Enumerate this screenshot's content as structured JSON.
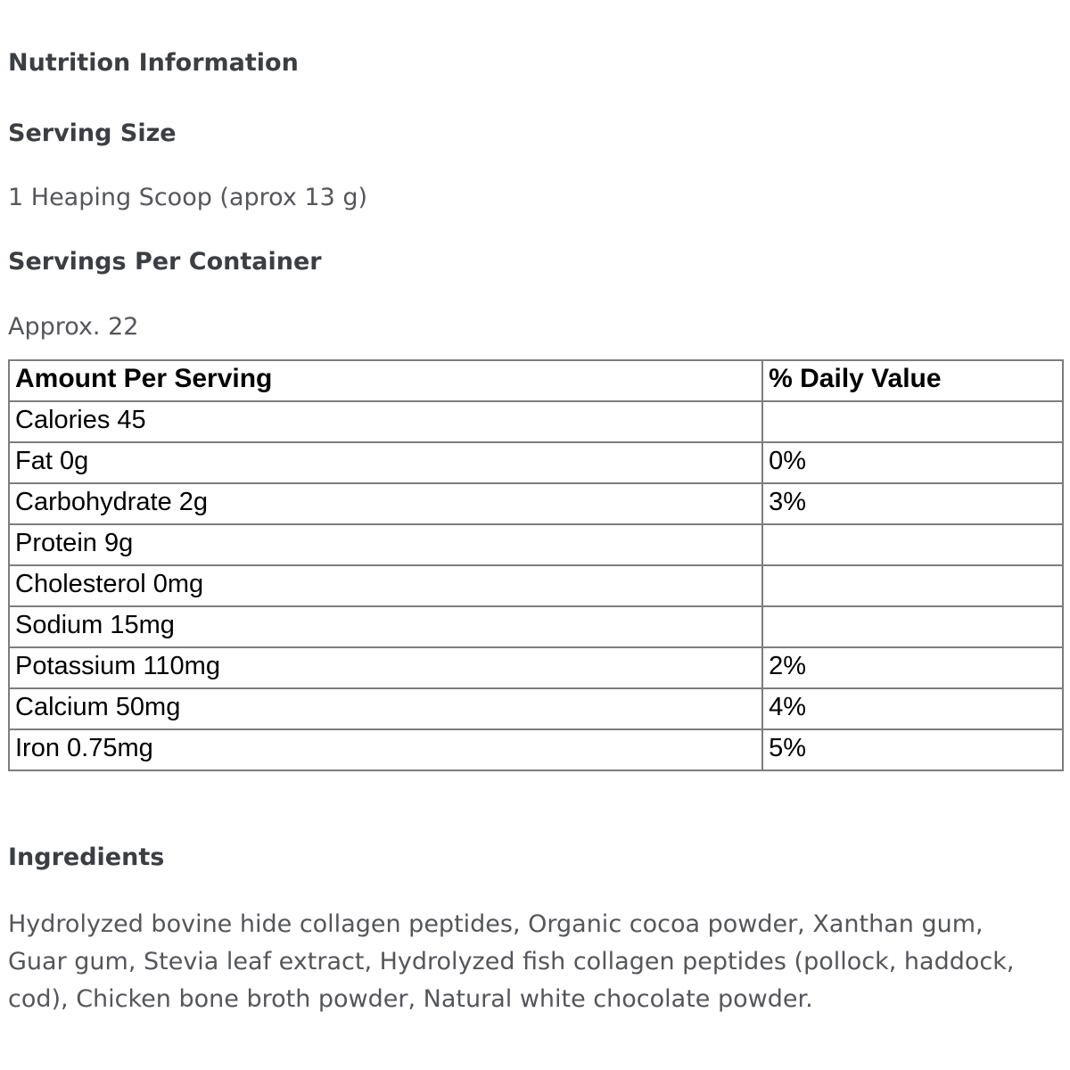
{
  "page": {
    "nutrition_heading": "Nutrition Information",
    "serving_size_heading": "Serving Size",
    "serving_size_value": "1 Heaping Scoop (aprox 13 g)",
    "servings_per_container_heading": "Servings Per Container",
    "servings_per_container_value": "Approx. 22",
    "ingredients_heading": "Ingredients",
    "ingredients_text": "Hydrolyzed bovine hide collagen peptides, Organic cocoa powder, Xanthan gum, Guar gum, Stevia leaf extract, Hydrolyzed fish collagen peptides (pollock, haddock, cod), Chicken bone broth powder, Natural white chocolate powder."
  },
  "table": {
    "columns": [
      "Amount Per Serving",
      "% Daily Value"
    ],
    "rows": [
      {
        "amount": "Calories 45",
        "daily_value": ""
      },
      {
        "amount": "Fat 0g",
        "daily_value": "0%"
      },
      {
        "amount": "Carbohydrate 2g",
        "daily_value": "3%"
      },
      {
        "amount": "Protein 9g",
        "daily_value": ""
      },
      {
        "amount": "Cholesterol 0mg",
        "daily_value": ""
      },
      {
        "amount": "Sodium 15mg",
        "daily_value": ""
      },
      {
        "amount": "Potassium 110mg",
        "daily_value": "2%"
      },
      {
        "amount": "Calcium 50mg",
        "daily_value": "4%"
      },
      {
        "amount": "Iron 0.75mg",
        "daily_value": "5%"
      }
    ]
  },
  "colors": {
    "background": "#ffffff",
    "heading_text": "#3b3e42",
    "body_text": "#54565a",
    "table_text": "#000000",
    "table_border": "#7d7d7d"
  }
}
